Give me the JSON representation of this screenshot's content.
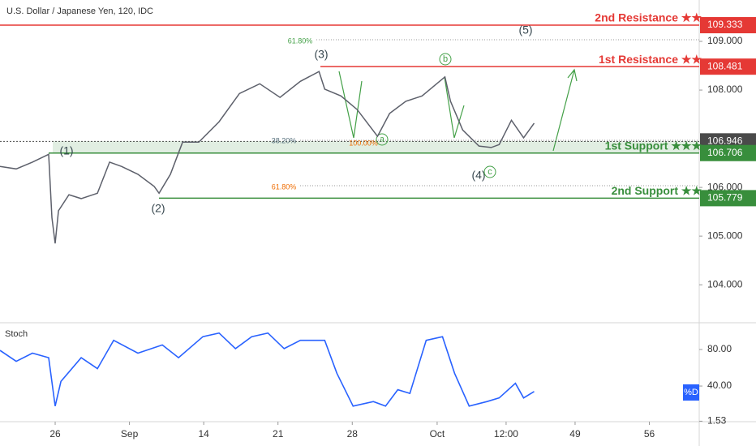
{
  "chart_data": [
    {
      "type": "line",
      "title": "U.S. Dollar / Japanese Yen, 120, IDC",
      "color": "#5d606b",
      "x": [
        -5.2,
        -3.67,
        -2.14,
        -0.61,
        -0.31,
        0,
        0.31,
        1.3,
        2.45,
        3.98,
        5.13,
        6.27,
        7.8,
        9.33,
        9.79,
        10.86,
        12.01,
        13.54,
        15.45,
        17.37,
        19.28,
        21.19,
        23.11,
        24.87,
        25.4,
        26.93,
        28.46,
        30.38,
        31.52,
        33.05,
        34.58,
        36.73,
        37.26,
        38.41,
        39.94,
        41.09,
        41.85,
        43,
        44.15,
        45.14
      ],
      "values": [
        106.43,
        106.38,
        106.52,
        106.68,
        105.38,
        104.85,
        105.52,
        105.85,
        105.77,
        105.88,
        106.52,
        106.43,
        106.27,
        106.02,
        105.88,
        106.27,
        106.93,
        106.93,
        107.35,
        107.93,
        108.13,
        107.85,
        108.18,
        108.38,
        108.02,
        107.88,
        107.6,
        107.05,
        107.52,
        107.77,
        107.88,
        108.27,
        107.77,
        107.18,
        106.85,
        106.82,
        106.88,
        107.38,
        107.02,
        107.32
      ],
      "xlim": [
        -5.2,
        60.7
      ],
      "ylim": [
        103.27,
        109.85
      ],
      "yticks": [
        {
          "value": 104,
          "label": "104.000"
        },
        {
          "value": 105,
          "label": "105.000"
        },
        {
          "value": 106,
          "label": "106.000"
        },
        {
          "value": 108,
          "label": "108.000"
        },
        {
          "value": 109,
          "label": "109.000"
        }
      ],
      "levels": [
        {
          "label": "2nd Resistance ★★",
          "value": 109.333,
          "color": "#e53935"
        },
        {
          "label": "1st Resistance ★★",
          "value": 108.481,
          "color": "#e53935"
        },
        {
          "value": 106.946,
          "color": "#4a4a4a"
        },
        {
          "label": "1st Support ★★★",
          "value": 106.706,
          "color": "#388e3c"
        },
        {
          "label": "2nd Support ★★",
          "value": 105.779,
          "color": "#388e3c"
        }
      ],
      "annotations": [
        "(1)",
        "(2)",
        "(3)",
        "(4)",
        "(5)",
        "a",
        "b",
        "c",
        "61.80%",
        "38.20%",
        "100.00%",
        "61.80%"
      ]
    },
    {
      "type": "line",
      "title": "Stoch",
      "legend": "%D",
      "color": "#2962ff",
      "x": [
        -5.2,
        -3.67,
        -2.14,
        -0.61,
        0,
        0.54,
        2.45,
        3.98,
        5.51,
        7.8,
        10.1,
        11.63,
        13.92,
        15.45,
        16.99,
        18.52,
        20.05,
        21.58,
        23.11,
        25.4,
        26.55,
        28.08,
        29.99,
        31.14,
        32.29,
        33.43,
        34.97,
        36.5,
        37.64,
        39.02,
        40.7,
        41.85,
        43.38,
        44.15,
        45.14
      ],
      "values": [
        79,
        67,
        76,
        71,
        18,
        45,
        71,
        59,
        90,
        76,
        85,
        71,
        94,
        98,
        81,
        94,
        98,
        81,
        90,
        90,
        54,
        18,
        23,
        18,
        36,
        32,
        90,
        94,
        54,
        18,
        23,
        27,
        43,
        27,
        34
      ],
      "xlim": [
        -5.2,
        60.7
      ],
      "ylim": [
        1,
        107.5
      ],
      "yticks": [
        {
          "value": 80,
          "label": "80.00"
        },
        {
          "value": 40,
          "label": "40.00"
        },
        1.53
      ],
      "xticks": [
        {
          "value": 0,
          "label": "26"
        },
        {
          "value": 7,
          "label": "Sep"
        },
        14,
        21,
        28,
        {
          "value": 36,
          "label": "Oct"
        },
        {
          "value": 42.5,
          "label": "12:00"
        },
        49,
        56
      ]
    }
  ]
}
